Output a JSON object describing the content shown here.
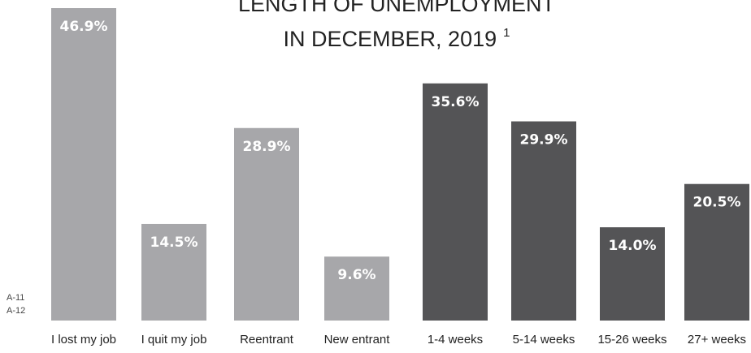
{
  "chart_data": {
    "type": "bar",
    "title_lines": [
      "LENGTH OF UNEMPLOYMENT",
      "IN DECEMBER, 2019"
    ],
    "title_superscript": "1",
    "side_notes": [
      "A-11",
      "A-12"
    ],
    "categories": [
      "I lost my job",
      "I quit my job",
      "Reentrant",
      "New entrant",
      "1-4 weeks",
      "5-14 weeks",
      "15-26 weeks",
      "27+ weeks"
    ],
    "values": [
      46.9,
      14.5,
      28.9,
      9.6,
      35.6,
      29.9,
      14.0,
      20.5
    ],
    "value_labels": [
      "46.9%",
      "14.5%",
      "28.9%",
      "9.6%",
      "35.6%",
      "29.9%",
      "14.0%",
      "20.5%"
    ],
    "bar_colors": [
      "#a7a7aa",
      "#a7a7aa",
      "#a7a7aa",
      "#a7a7aa",
      "#545456",
      "#545456",
      "#545456",
      "#545456"
    ],
    "ylim": [
      0,
      46.9
    ],
    "xlabel": "",
    "ylabel": "",
    "grid": false,
    "legend": "none"
  }
}
